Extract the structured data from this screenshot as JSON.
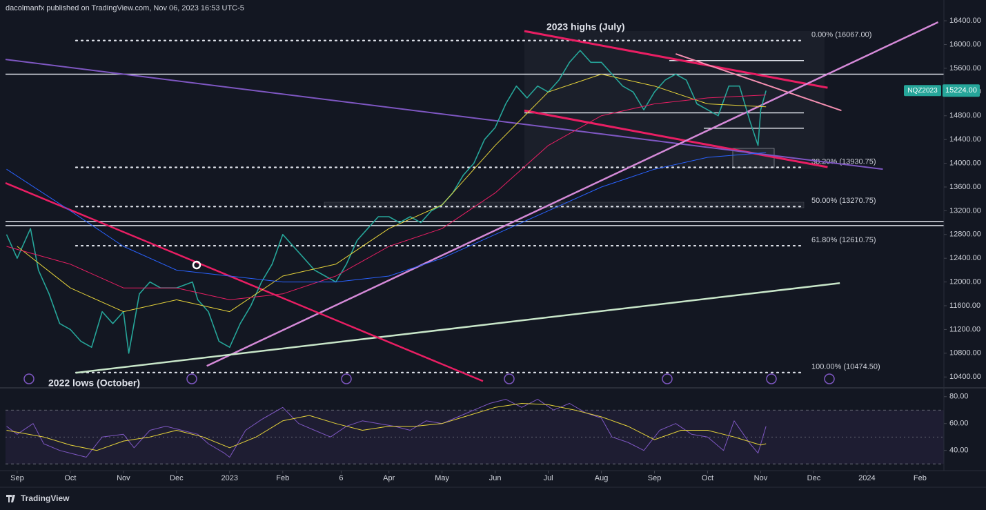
{
  "header": {
    "byline": "dacolmanfx published on TradingView.com, Nov 06, 2023 16:53 UTC-5"
  },
  "footer": {
    "brand": "TradingView"
  },
  "chart_data": [
    {
      "type": "line",
      "symbol": "NQZ2023",
      "last": {
        "value": 15224,
        "label": "15224.00"
      },
      "annotations": [
        "2023 highs (July)",
        "2022 lows (October)"
      ],
      "xlim": [
        -0.22,
        17.45
      ],
      "xticks": [
        {
          "value": 0,
          "label": "Sep"
        },
        {
          "value": 1,
          "label": "Oct"
        },
        {
          "value": 2,
          "label": "Nov"
        },
        {
          "value": 3,
          "label": "Dec"
        },
        {
          "value": 4,
          "label": "2023"
        },
        {
          "value": 5,
          "label": "Feb"
        },
        {
          "value": 6.1,
          "label": "6"
        },
        {
          "value": 7,
          "label": "Apr"
        },
        {
          "value": 8,
          "label": "May"
        },
        {
          "value": 9,
          "label": "Jun"
        },
        {
          "value": 10,
          "label": "Jul"
        },
        {
          "value": 11,
          "label": "Aug"
        },
        {
          "value": 12,
          "label": "Sep"
        },
        {
          "value": 13,
          "label": "Oct"
        },
        {
          "value": 14,
          "label": "Nov"
        },
        {
          "value": 15,
          "label": "Dec"
        },
        {
          "value": 16,
          "label": "2024"
        },
        {
          "value": 17,
          "label": "Feb"
        }
      ],
      "ylim": [
        10240,
        16750
      ],
      "yticks": [
        {
          "value": 10400,
          "label": "10400.00"
        },
        {
          "value": 10800,
          "label": "10800.00"
        },
        {
          "value": 11200,
          "label": "11200.00"
        },
        {
          "value": 11600,
          "label": "11600.00"
        },
        {
          "value": 12000,
          "label": "12000.00"
        },
        {
          "value": 12400,
          "label": "12400.00"
        },
        {
          "value": 12800,
          "label": "12800.00"
        },
        {
          "value": 13200,
          "label": "13200.00"
        },
        {
          "value": 13600,
          "label": "13600.00"
        },
        {
          "value": 14000,
          "label": "14000.00"
        },
        {
          "value": 14400,
          "label": "14400.00"
        },
        {
          "value": 14800,
          "label": "14800.00"
        },
        {
          "value": 15200,
          "label": "15200.00"
        },
        {
          "value": 15600,
          "label": "15600.00"
        },
        {
          "value": 16000,
          "label": "16000.00"
        },
        {
          "value": 16400,
          "label": "16400.00"
        }
      ],
      "grid": false,
      "series": [
        {
          "color": "#26a69a",
          "width": 1.6,
          "x": [
            -0.2,
            0,
            0.25,
            0.4,
            0.6,
            0.8,
            1.0,
            1.2,
            1.4,
            1.6,
            1.8,
            2.0,
            2.1,
            2.3,
            2.5,
            2.7,
            3.0,
            3.3,
            3.4,
            3.6,
            3.8,
            4.0,
            4.2,
            4.4,
            4.6,
            4.8,
            5.0,
            5.2,
            5.4,
            5.6,
            5.8,
            6.0,
            6.2,
            6.4,
            6.6,
            6.8,
            7.0,
            7.2,
            7.4,
            7.6,
            7.8,
            8.0,
            8.2,
            8.4,
            8.6,
            8.8,
            9.0,
            9.2,
            9.4,
            9.6,
            9.8,
            10.0,
            10.2,
            10.4,
            10.6,
            10.8,
            11.0,
            11.2,
            11.4,
            11.6,
            11.8,
            12.0,
            12.2,
            12.4,
            12.6,
            12.8,
            13.0,
            13.2,
            13.4,
            13.6,
            13.8,
            13.95,
            14.0,
            14.1
          ],
          "values": [
            12800,
            12400,
            12900,
            12200,
            11800,
            11300,
            11200,
            11000,
            10900,
            11500,
            11300,
            11500,
            10800,
            11800,
            12000,
            11900,
            11900,
            12000,
            11700,
            11500,
            11000,
            10900,
            11300,
            11600,
            12000,
            12300,
            12800,
            12600,
            12400,
            12200,
            12100,
            12000,
            12300,
            12700,
            12900,
            13100,
            13100,
            13000,
            13100,
            13000,
            13200,
            13300,
            13500,
            13800,
            14000,
            14400,
            14600,
            15000,
            15300,
            15100,
            15300,
            15200,
            15400,
            15700,
            15900,
            15700,
            15700,
            15500,
            15300,
            15200,
            14900,
            15200,
            15400,
            15500,
            15400,
            15000,
            14900,
            14800,
            15300,
            15300,
            14700,
            14300,
            14900,
            15224
          ]
        },
        {
          "color": "#e6d33a",
          "width": 1,
          "x": [
            0,
            1,
            2,
            3,
            4,
            5,
            6,
            7,
            8,
            9,
            10,
            11,
            12,
            13,
            14.1
          ],
          "values": [
            12600,
            11900,
            11500,
            11700,
            11500,
            12100,
            12300,
            12900,
            13300,
            14300,
            15200,
            15500,
            15300,
            15000,
            14950
          ]
        },
        {
          "color": "#e91e63",
          "width": 1,
          "x": [
            -0.2,
            1,
            2,
            3,
            4,
            5,
            6,
            7,
            8,
            9,
            10,
            11,
            12,
            13,
            14.1
          ],
          "values": [
            12600,
            12300,
            11900,
            11900,
            11700,
            11800,
            12100,
            12600,
            12900,
            13500,
            14300,
            14800,
            15000,
            15100,
            15150
          ]
        },
        {
          "color": "#2962ff",
          "width": 1,
          "x": [
            -0.2,
            1,
            2,
            3,
            4,
            5,
            6,
            7,
            8,
            9,
            10,
            11,
            12,
            13,
            14.1
          ],
          "values": [
            13900,
            13200,
            12600,
            12200,
            12100,
            12000,
            12000,
            12100,
            12400,
            12800,
            13200,
            13600,
            13900,
            14100,
            14180
          ]
        }
      ],
      "levels": [
        {
          "value": 16067,
          "label": "0.00% (16067.00)"
        },
        {
          "value": 13930.75,
          "label": "38.20% (13930.75)"
        },
        {
          "value": 13270.75,
          "label": "50.00% (13270.75)"
        },
        {
          "value": 12610.75,
          "label": "61.80% (12610.75)"
        },
        {
          "value": 10474.5,
          "label": "100.00% (10474.50)"
        }
      ],
      "hlines": [
        15500,
        15730,
        14850,
        14590,
        13020,
        12950
      ],
      "trendlines": [
        {
          "color": "#e91e63",
          "width": 3,
          "x": [
            9.55,
            15.26
          ],
          "y": [
            16226,
            15272
          ]
        },
        {
          "color": "#e91e63",
          "width": 3,
          "x": [
            9.55,
            15.26
          ],
          "y": [
            14888,
            13935
          ]
        },
        {
          "color": "#f48fb1",
          "width": 2,
          "x": [
            12.4,
            15.52
          ],
          "y": [
            15842,
            14888
          ]
        },
        {
          "color": "#7e57c2",
          "width": 2,
          "x": [
            -0.22,
            16.3
          ],
          "y": [
            15749,
            13900
          ]
        },
        {
          "color": "#d58ad8",
          "width": 2.5,
          "x": [
            3.57,
            17.34
          ],
          "y": [
            10586,
            16377
          ]
        },
        {
          "color": "#c8e6c9",
          "width": 2.5,
          "x": [
            1.1,
            15.49
          ],
          "y": [
            10470,
            11981
          ]
        },
        {
          "color": "#e91e63",
          "width": 2.5,
          "x": [
            -0.22,
            8.77
          ],
          "y": [
            13667,
            10330
          ]
        }
      ]
    },
    {
      "type": "line",
      "xlim": [
        -0.22,
        17.45
      ],
      "ylim": [
        26,
        85
      ],
      "yticks": [
        {
          "value": 40,
          "label": "40.00"
        },
        {
          "value": 60,
          "label": "60.00"
        },
        {
          "value": 80,
          "label": "80.00"
        }
      ],
      "band": [
        30,
        70
      ],
      "midline": 50,
      "series": [
        {
          "color": "#7e57c2",
          "width": 1,
          "x": [
            -0.2,
            0,
            0.3,
            0.5,
            0.8,
            1.0,
            1.3,
            1.6,
            2.0,
            2.2,
            2.5,
            2.8,
            3.1,
            3.4,
            3.6,
            3.9,
            4.0,
            4.3,
            4.6,
            5.0,
            5.3,
            5.6,
            5.9,
            6.2,
            6.5,
            6.8,
            7.1,
            7.4,
            7.7,
            8.0,
            8.3,
            8.6,
            8.9,
            9.2,
            9.5,
            9.8,
            10.1,
            10.4,
            10.7,
            11.0,
            11.2,
            11.5,
            11.8,
            12.1,
            12.4,
            12.7,
            13.0,
            13.3,
            13.5,
            13.8,
            13.95,
            14.1
          ],
          "values": [
            58,
            52,
            60,
            45,
            40,
            38,
            35,
            50,
            52,
            42,
            55,
            58,
            55,
            52,
            45,
            38,
            35,
            55,
            63,
            72,
            60,
            55,
            50,
            58,
            62,
            60,
            58,
            55,
            62,
            60,
            65,
            70,
            75,
            78,
            72,
            78,
            70,
            75,
            68,
            64,
            50,
            46,
            40,
            55,
            60,
            52,
            50,
            40,
            62,
            45,
            38,
            58
          ]
        },
        {
          "color": "#e6d33a",
          "width": 1,
          "x": [
            -0.2,
            0.5,
            1,
            1.5,
            2,
            2.5,
            3,
            3.5,
            4,
            4.5,
            5,
            5.5,
            6,
            6.5,
            7,
            7.5,
            8,
            8.5,
            9,
            9.5,
            10,
            10.5,
            11,
            11.5,
            12,
            12.5,
            13,
            13.5,
            14,
            14.1
          ],
          "values": [
            55,
            50,
            44,
            40,
            47,
            50,
            55,
            50,
            42,
            50,
            62,
            66,
            60,
            55,
            58,
            58,
            60,
            66,
            72,
            75,
            74,
            70,
            65,
            58,
            48,
            55,
            55,
            50,
            44,
            45
          ]
        }
      ]
    }
  ]
}
